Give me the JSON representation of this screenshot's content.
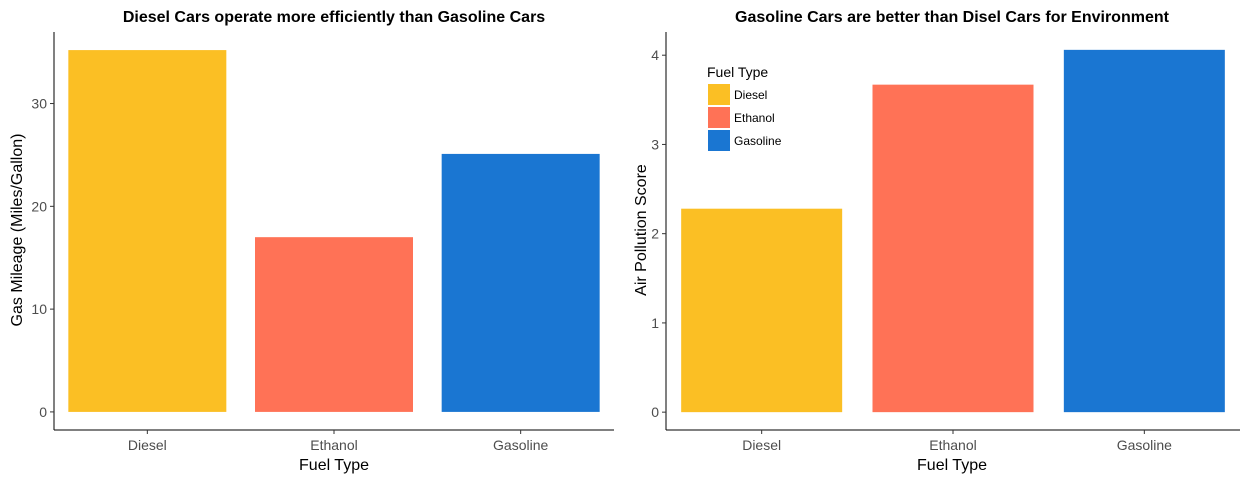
{
  "chart_data": [
    {
      "type": "bar",
      "title": "Diesel Cars operate more efficiently than Gasoline Cars",
      "xlabel": "Fuel Type",
      "ylabel": "Gas Mileage (Miles/Gallon)",
      "categories": [
        "Diesel",
        "Ethanol",
        "Gasoline"
      ],
      "values": [
        35.2,
        17.0,
        25.1
      ],
      "ylim": [
        -1.76,
        36.96
      ],
      "yticks": [
        0,
        10,
        20,
        30
      ],
      "grid": false,
      "legend": false
    },
    {
      "type": "bar",
      "title": "Gasoline Cars are better than Disel Cars for Environment",
      "xlabel": "Fuel Type",
      "ylabel": "Air Pollution Score",
      "categories": [
        "Diesel",
        "Ethanol",
        "Gasoline"
      ],
      "values": [
        2.28,
        3.67,
        4.06
      ],
      "ylim": [
        -0.2,
        4.26
      ],
      "yticks": [
        0,
        1,
        2,
        3,
        4
      ],
      "grid": false,
      "legend": true,
      "legend_position": "top-left",
      "legend_title": "Fuel Type"
    }
  ],
  "colors": {
    "Diesel": "#FBBF24",
    "Ethanol": "#FF7256",
    "Gasoline": "#1A76D2"
  }
}
